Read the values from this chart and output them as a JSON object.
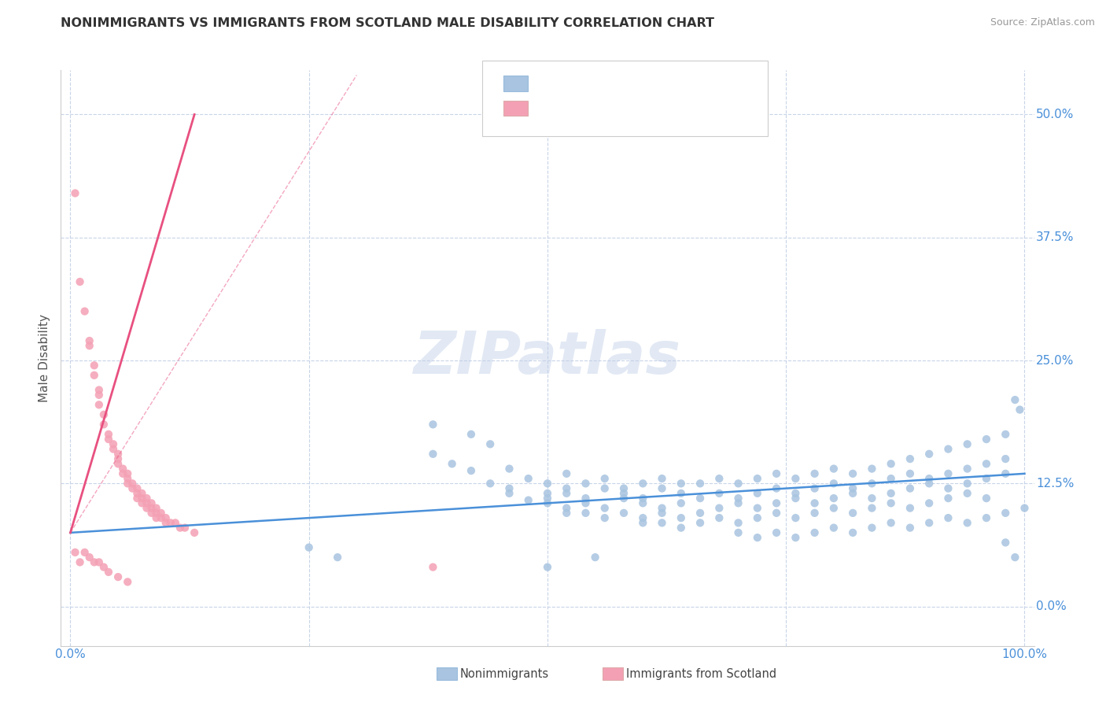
{
  "title": "NONIMMIGRANTS VS IMMIGRANTS FROM SCOTLAND MALE DISABILITY CORRELATION CHART",
  "source": "Source: ZipAtlas.com",
  "ylabel": "Male Disability",
  "watermark": "ZIPatlas",
  "nonimmigrant_color": "#a8c4e0",
  "immigrant_color": "#f4a0b4",
  "nonimmigrant_line_color": "#4a90d9",
  "immigrant_line_color": "#e85080",
  "background_color": "#ffffff",
  "grid_color": "#c8d4e8",
  "xlim": [
    -0.01,
    1.01
  ],
  "ylim": [
    -0.04,
    0.545
  ],
  "yticks": [
    0.0,
    0.125,
    0.25,
    0.375,
    0.5
  ],
  "ytick_labels": [
    "0.0%",
    "12.5%",
    "25.0%",
    "37.5%",
    "50.0%"
  ],
  "xticks": [
    0.0,
    0.25,
    0.5,
    0.75,
    1.0
  ],
  "xtick_labels": [
    "0.0%",
    "",
    "",
    "",
    "100.0%"
  ],
  "nonimmigrant_scatter": [
    [
      0.38,
      0.185
    ],
    [
      0.42,
      0.175
    ],
    [
      0.44,
      0.165
    ],
    [
      0.38,
      0.155
    ],
    [
      0.4,
      0.145
    ],
    [
      0.42,
      0.138
    ],
    [
      0.46,
      0.14
    ],
    [
      0.48,
      0.13
    ],
    [
      0.5,
      0.125
    ],
    [
      0.52,
      0.135
    ],
    [
      0.44,
      0.125
    ],
    [
      0.46,
      0.12
    ],
    [
      0.5,
      0.115
    ],
    [
      0.52,
      0.12
    ],
    [
      0.54,
      0.125
    ],
    [
      0.56,
      0.13
    ],
    [
      0.58,
      0.12
    ],
    [
      0.6,
      0.125
    ],
    [
      0.62,
      0.13
    ],
    [
      0.64,
      0.125
    ],
    [
      0.46,
      0.115
    ],
    [
      0.48,
      0.108
    ],
    [
      0.5,
      0.11
    ],
    [
      0.52,
      0.115
    ],
    [
      0.54,
      0.11
    ],
    [
      0.56,
      0.12
    ],
    [
      0.58,
      0.115
    ],
    [
      0.6,
      0.11
    ],
    [
      0.62,
      0.12
    ],
    [
      0.64,
      0.115
    ],
    [
      0.66,
      0.125
    ],
    [
      0.68,
      0.13
    ],
    [
      0.7,
      0.125
    ],
    [
      0.72,
      0.13
    ],
    [
      0.74,
      0.135
    ],
    [
      0.76,
      0.13
    ],
    [
      0.78,
      0.135
    ],
    [
      0.8,
      0.14
    ],
    [
      0.82,
      0.135
    ],
    [
      0.84,
      0.14
    ],
    [
      0.86,
      0.145
    ],
    [
      0.88,
      0.15
    ],
    [
      0.9,
      0.155
    ],
    [
      0.92,
      0.16
    ],
    [
      0.94,
      0.165
    ],
    [
      0.96,
      0.17
    ],
    [
      0.98,
      0.175
    ],
    [
      0.99,
      0.21
    ],
    [
      0.995,
      0.2
    ],
    [
      0.5,
      0.105
    ],
    [
      0.52,
      0.1
    ],
    [
      0.54,
      0.105
    ],
    [
      0.56,
      0.1
    ],
    [
      0.58,
      0.11
    ],
    [
      0.6,
      0.105
    ],
    [
      0.62,
      0.1
    ],
    [
      0.64,
      0.105
    ],
    [
      0.66,
      0.11
    ],
    [
      0.68,
      0.115
    ],
    [
      0.7,
      0.11
    ],
    [
      0.72,
      0.115
    ],
    [
      0.74,
      0.12
    ],
    [
      0.76,
      0.115
    ],
    [
      0.78,
      0.12
    ],
    [
      0.8,
      0.125
    ],
    [
      0.82,
      0.12
    ],
    [
      0.84,
      0.125
    ],
    [
      0.86,
      0.13
    ],
    [
      0.88,
      0.135
    ],
    [
      0.9,
      0.13
    ],
    [
      0.92,
      0.135
    ],
    [
      0.94,
      0.14
    ],
    [
      0.96,
      0.145
    ],
    [
      0.98,
      0.15
    ],
    [
      0.52,
      0.095
    ],
    [
      0.54,
      0.095
    ],
    [
      0.56,
      0.09
    ],
    [
      0.58,
      0.095
    ],
    [
      0.6,
      0.09
    ],
    [
      0.62,
      0.095
    ],
    [
      0.64,
      0.09
    ],
    [
      0.66,
      0.095
    ],
    [
      0.68,
      0.1
    ],
    [
      0.7,
      0.105
    ],
    [
      0.72,
      0.1
    ],
    [
      0.74,
      0.105
    ],
    [
      0.76,
      0.11
    ],
    [
      0.78,
      0.105
    ],
    [
      0.8,
      0.11
    ],
    [
      0.82,
      0.115
    ],
    [
      0.84,
      0.11
    ],
    [
      0.86,
      0.115
    ],
    [
      0.88,
      0.12
    ],
    [
      0.9,
      0.125
    ],
    [
      0.92,
      0.12
    ],
    [
      0.94,
      0.125
    ],
    [
      0.96,
      0.13
    ],
    [
      0.98,
      0.135
    ],
    [
      0.6,
      0.085
    ],
    [
      0.62,
      0.085
    ],
    [
      0.64,
      0.08
    ],
    [
      0.66,
      0.085
    ],
    [
      0.68,
      0.09
    ],
    [
      0.7,
      0.085
    ],
    [
      0.72,
      0.09
    ],
    [
      0.74,
      0.095
    ],
    [
      0.76,
      0.09
    ],
    [
      0.78,
      0.095
    ],
    [
      0.8,
      0.1
    ],
    [
      0.82,
      0.095
    ],
    [
      0.84,
      0.1
    ],
    [
      0.86,
      0.105
    ],
    [
      0.88,
      0.1
    ],
    [
      0.9,
      0.105
    ],
    [
      0.92,
      0.11
    ],
    [
      0.94,
      0.115
    ],
    [
      0.96,
      0.11
    ],
    [
      0.25,
      0.06
    ],
    [
      0.28,
      0.05
    ],
    [
      0.5,
      0.04
    ],
    [
      0.55,
      0.05
    ],
    [
      0.7,
      0.075
    ],
    [
      0.72,
      0.07
    ],
    [
      0.74,
      0.075
    ],
    [
      0.76,
      0.07
    ],
    [
      0.78,
      0.075
    ],
    [
      0.8,
      0.08
    ],
    [
      0.82,
      0.075
    ],
    [
      0.84,
      0.08
    ],
    [
      0.86,
      0.085
    ],
    [
      0.88,
      0.08
    ],
    [
      0.9,
      0.085
    ],
    [
      0.92,
      0.09
    ],
    [
      0.94,
      0.085
    ],
    [
      0.96,
      0.09
    ],
    [
      0.98,
      0.095
    ],
    [
      1.0,
      0.1
    ],
    [
      0.98,
      0.065
    ],
    [
      0.99,
      0.05
    ]
  ],
  "immigrant_scatter": [
    [
      0.005,
      0.42
    ],
    [
      0.01,
      0.33
    ],
    [
      0.015,
      0.3
    ],
    [
      0.02,
      0.27
    ],
    [
      0.02,
      0.265
    ],
    [
      0.025,
      0.245
    ],
    [
      0.025,
      0.235
    ],
    [
      0.03,
      0.22
    ],
    [
      0.03,
      0.215
    ],
    [
      0.03,
      0.205
    ],
    [
      0.035,
      0.195
    ],
    [
      0.035,
      0.185
    ],
    [
      0.04,
      0.175
    ],
    [
      0.04,
      0.17
    ],
    [
      0.045,
      0.165
    ],
    [
      0.045,
      0.16
    ],
    [
      0.05,
      0.155
    ],
    [
      0.05,
      0.15
    ],
    [
      0.05,
      0.145
    ],
    [
      0.055,
      0.14
    ],
    [
      0.055,
      0.135
    ],
    [
      0.06,
      0.135
    ],
    [
      0.06,
      0.13
    ],
    [
      0.06,
      0.125
    ],
    [
      0.065,
      0.125
    ],
    [
      0.065,
      0.12
    ],
    [
      0.07,
      0.12
    ],
    [
      0.07,
      0.115
    ],
    [
      0.07,
      0.11
    ],
    [
      0.075,
      0.115
    ],
    [
      0.075,
      0.11
    ],
    [
      0.075,
      0.105
    ],
    [
      0.08,
      0.11
    ],
    [
      0.08,
      0.105
    ],
    [
      0.08,
      0.1
    ],
    [
      0.085,
      0.105
    ],
    [
      0.085,
      0.1
    ],
    [
      0.085,
      0.095
    ],
    [
      0.09,
      0.1
    ],
    [
      0.09,
      0.095
    ],
    [
      0.09,
      0.09
    ],
    [
      0.095,
      0.095
    ],
    [
      0.095,
      0.09
    ],
    [
      0.1,
      0.09
    ],
    [
      0.1,
      0.085
    ],
    [
      0.105,
      0.085
    ],
    [
      0.11,
      0.085
    ],
    [
      0.115,
      0.08
    ],
    [
      0.12,
      0.08
    ],
    [
      0.13,
      0.075
    ],
    [
      0.005,
      0.055
    ],
    [
      0.01,
      0.045
    ],
    [
      0.015,
      0.055
    ],
    [
      0.02,
      0.05
    ],
    [
      0.025,
      0.045
    ],
    [
      0.03,
      0.045
    ],
    [
      0.035,
      0.04
    ],
    [
      0.04,
      0.035
    ],
    [
      0.05,
      0.03
    ],
    [
      0.06,
      0.025
    ],
    [
      0.38,
      0.04
    ]
  ],
  "nonimmigrant_line": [
    [
      0.0,
      0.075
    ],
    [
      1.0,
      0.135
    ]
  ],
  "immigrant_line_solid": [
    [
      0.0,
      0.075
    ],
    [
      0.13,
      0.5
    ]
  ],
  "immigrant_line_dashed": [
    [
      0.13,
      0.5
    ],
    [
      0.27,
      0.5
    ]
  ]
}
